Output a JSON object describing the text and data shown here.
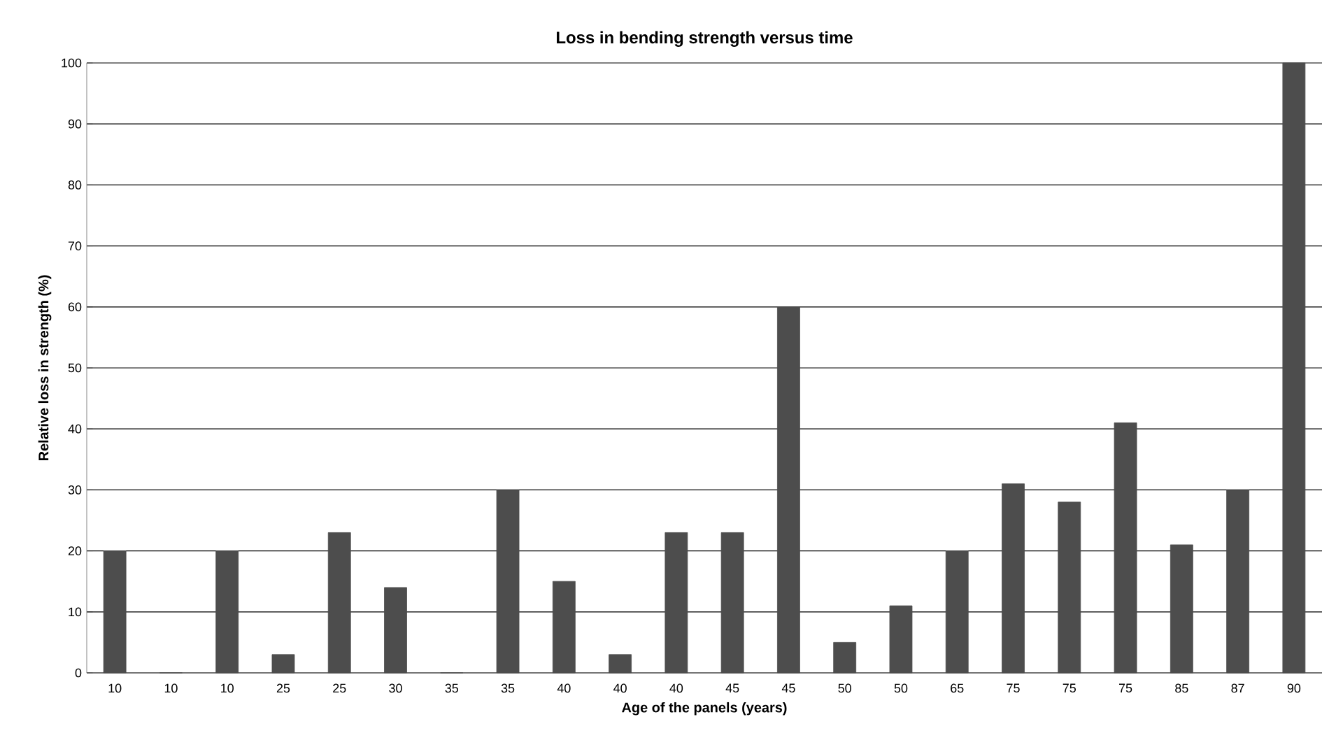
{
  "chart_data": {
    "type": "bar",
    "title": "Loss in bending strength versus time",
    "xlabel": "Age of the panels (years)",
    "ylabel": "Relative loss in strength (%)",
    "categories": [
      "10",
      "10",
      "10",
      "25",
      "25",
      "30",
      "35",
      "35",
      "40",
      "40",
      "40",
      "45",
      "45",
      "50",
      "50",
      "65",
      "75",
      "75",
      "75",
      "85",
      "87",
      "90"
    ],
    "values": [
      20,
      0,
      20,
      3,
      23,
      14,
      0,
      30,
      15,
      3,
      23,
      23,
      60,
      5,
      11,
      20,
      31,
      28,
      41,
      21,
      30,
      100
    ],
    "color": "#4d4d4d",
    "ylim": [
      0,
      100
    ],
    "yticks": [
      0,
      10,
      20,
      30,
      40,
      50,
      60,
      70,
      80,
      90,
      100
    ],
    "grid": "y"
  }
}
